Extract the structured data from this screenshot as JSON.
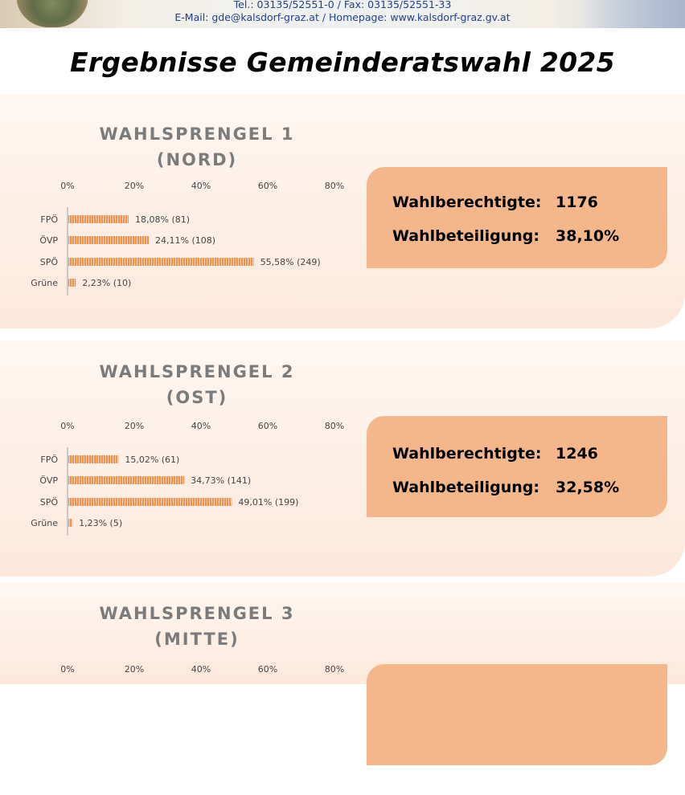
{
  "header": {
    "contact_line1": "Tel.: 03135/52551-0 / Fax: 03135/52551-33",
    "contact_line2": "E-Mail: gde@kalsdorf-graz.at / Homepage: www.kalsdorf-graz.gv.at"
  },
  "page_title": "Ergebnisse Gemeinderatswahl 2025",
  "colors": {
    "bar": "#ef9352",
    "bar_stripe": "#fbd3b4",
    "info_box": "#f4b78c",
    "section_top": "#fef7f2",
    "section_bottom": "#fde8da"
  },
  "labels": {
    "eligible": "Wahlberechtigte:",
    "turnout": "Wahlbeteiligung:"
  },
  "sections": [
    {
      "title_line1": "WAHLSPRENGEL 1",
      "title_line2": "(NORD)",
      "eligible": "1176",
      "turnout": "38,10%"
    },
    {
      "title_line1": "WAHLSPRENGEL 2",
      "title_line2": "(OST)",
      "eligible": "1246",
      "turnout": "32,58%"
    },
    {
      "title_line1": "WAHLSPRENGEL 3",
      "title_line2": "(MITTE)",
      "eligible": "",
      "turnout": ""
    }
  ],
  "chart_data": [
    {
      "type": "bar",
      "orientation": "horizontal",
      "categories": [
        "FPÖ",
        "ÖVP",
        "SPÖ",
        "Grüne"
      ],
      "values": [
        18.08,
        24.11,
        55.58,
        2.23
      ],
      "value_labels": [
        "18,08% (81)",
        "24,11% (108)",
        "55,58% (249)",
        "2,23% (10)"
      ],
      "x_ticks": [
        "0%",
        "20%",
        "40%",
        "60%",
        "80%"
      ],
      "xlim": [
        0,
        80
      ],
      "grid": false
    },
    {
      "type": "bar",
      "orientation": "horizontal",
      "categories": [
        "FPÖ",
        "ÖVP",
        "SPÖ",
        "Grüne"
      ],
      "values": [
        15.02,
        34.73,
        49.01,
        1.23
      ],
      "value_labels": [
        "15,02% (61)",
        "34,73% (141)",
        "49,01% (199)",
        "1,23% (5)"
      ],
      "x_ticks": [
        "0%",
        "20%",
        "40%",
        "60%",
        "80%"
      ],
      "xlim": [
        0,
        80
      ],
      "grid": false
    },
    {
      "type": "bar",
      "orientation": "horizontal",
      "categories": [],
      "values": [],
      "value_labels": [],
      "x_ticks": [
        "0%",
        "20%",
        "40%",
        "60%",
        "80%"
      ],
      "xlim": [
        0,
        80
      ],
      "grid": false
    }
  ]
}
